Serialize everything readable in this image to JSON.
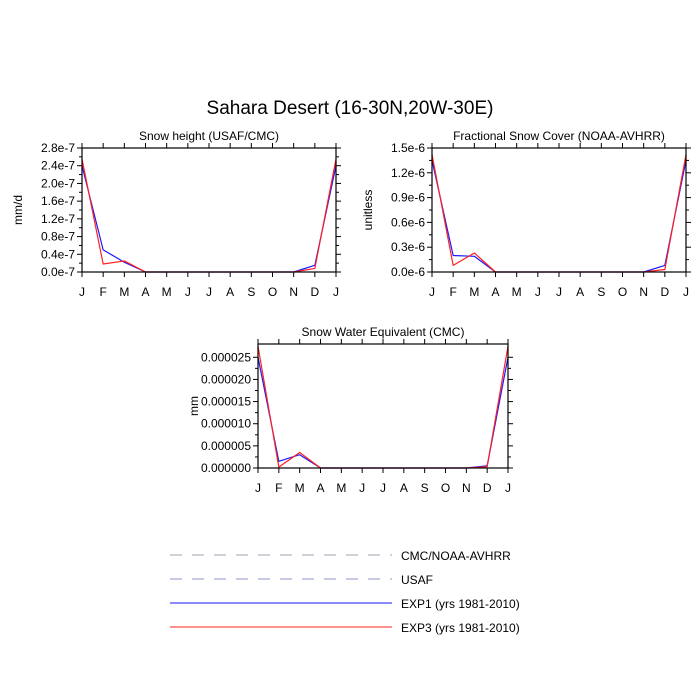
{
  "figure_title": "Sahara Desert (16-30N,20W-30E)",
  "chart_data": [
    {
      "type": "line",
      "title": "Snow height (USAF/CMC)",
      "xlabel": "",
      "ylabel": "mm/d",
      "categories": [
        "J",
        "F",
        "M",
        "A",
        "M",
        "J",
        "J",
        "A",
        "S",
        "O",
        "N",
        "D",
        "J"
      ],
      "ylim": [
        0,
        2.8e-07
      ],
      "yticks": [
        0,
        4e-08,
        8e-08,
        1.2e-07,
        1.6e-07,
        2e-07,
        2.4e-07,
        2.8e-07
      ],
      "ytick_labels": [
        "0.0e-7",
        "0.4e-7",
        "0.8e-7",
        "1.2e-7",
        "1.6e-7",
        "2.0e-7",
        "2.4e-7",
        "2.8e-7"
      ],
      "series": [
        {
          "name": "USAF",
          "values": [
            0,
            0,
            0,
            0,
            0,
            0,
            0,
            0,
            0,
            0,
            0,
            0,
            0
          ]
        },
        {
          "name": "EXP1 (yrs 1981-2010)",
          "values": [
            2.4e-07,
            5e-08,
            2.2e-08,
            0,
            0,
            0,
            0,
            0,
            0,
            0,
            0,
            1.5e-08,
            2.4e-07
          ]
        },
        {
          "name": "EXP3 (yrs 1981-2010)",
          "values": [
            2.55e-07,
            1.8e-08,
            2.5e-08,
            0,
            0,
            0,
            0,
            0,
            0,
            0,
            0,
            8e-09,
            2.55e-07
          ]
        }
      ]
    },
    {
      "type": "line",
      "title": "Fractional Snow Cover (NOAA-AVHRR)",
      "xlabel": "",
      "ylabel": "unitless",
      "categories": [
        "J",
        "F",
        "M",
        "A",
        "M",
        "J",
        "J",
        "A",
        "S",
        "O",
        "N",
        "D",
        "J"
      ],
      "ylim": [
        0,
        1.5e-06
      ],
      "yticks": [
        0,
        3e-07,
        6e-07,
        9e-07,
        1.2e-06,
        1.5e-06
      ],
      "ytick_labels": [
        "0.0e-6",
        "0.3e-6",
        "0.6e-6",
        "0.9e-6",
        "1.2e-6",
        "1.5e-6"
      ],
      "series": [
        {
          "name": "CMC/NOAA-AVHRR",
          "values": [
            0,
            0,
            0,
            0,
            0,
            0,
            0,
            0,
            0,
            0,
            0,
            0,
            0
          ]
        },
        {
          "name": "EXP1 (yrs 1981-2010)",
          "values": [
            1.35e-06,
            2e-07,
            1.9e-07,
            0,
            0,
            0,
            0,
            0,
            0,
            0,
            0,
            8e-08,
            1.35e-06
          ]
        },
        {
          "name": "EXP3 (yrs 1981-2010)",
          "values": [
            1.42e-06,
            8e-08,
            2.3e-07,
            0,
            0,
            0,
            0,
            0,
            0,
            0,
            0,
            3e-08,
            1.42e-06
          ]
        }
      ]
    },
    {
      "type": "line",
      "title": "Snow Water Equivalent (CMC)",
      "xlabel": "",
      "ylabel": "mm",
      "categories": [
        "J",
        "F",
        "M",
        "A",
        "M",
        "J",
        "J",
        "A",
        "S",
        "O",
        "N",
        "D",
        "J"
      ],
      "ylim": [
        0,
        2.8e-05
      ],
      "yticks": [
        0,
        5e-06,
        1e-05,
        1.5e-05,
        2e-05,
        2.5e-05
      ],
      "ytick_labels": [
        "0.000000",
        "0.000005",
        "0.000010",
        "0.000015",
        "0.000020",
        "0.000025"
      ],
      "series": [
        {
          "name": "CMC/NOAA-AVHRR",
          "values": [
            0,
            0,
            0,
            0,
            0,
            0,
            0,
            0,
            0,
            0,
            0,
            0,
            0
          ]
        },
        {
          "name": "EXP1 (yrs 1981-2010)",
          "values": [
            2.5e-05,
            1.5e-06,
            3e-06,
            0,
            0,
            0,
            0,
            0,
            0,
            0,
            0,
            5e-07,
            2.5e-05
          ]
        },
        {
          "name": "EXP3 (yrs 1981-2010)",
          "values": [
            2.75e-05,
            2e-07,
            3.5e-06,
            0,
            0,
            0,
            0,
            0,
            0,
            0,
            0,
            3e-07,
            2.75e-05
          ]
        }
      ]
    }
  ],
  "legend": {
    "placement": "bottom-center",
    "items": [
      {
        "label": "CMC/NOAA-AVHRR",
        "color": "#9aa3b4",
        "style": "dashed"
      },
      {
        "label": "USAF",
        "color": "#8f95c8",
        "style": "dashed"
      },
      {
        "label": "EXP1 (yrs 1981-2010)",
        "color": "#1a1aff",
        "style": "solid"
      },
      {
        "label": "EXP3 (yrs 1981-2010)",
        "color": "#ff2020",
        "style": "solid"
      }
    ]
  },
  "colors": {
    "EXP1 (yrs 1981-2010)": "#1a1aff",
    "EXP3 (yrs 1981-2010)": "#ff2020",
    "USAF": "#8f95c8",
    "CMC/NOAA-AVHRR": "#9aa3b4"
  }
}
